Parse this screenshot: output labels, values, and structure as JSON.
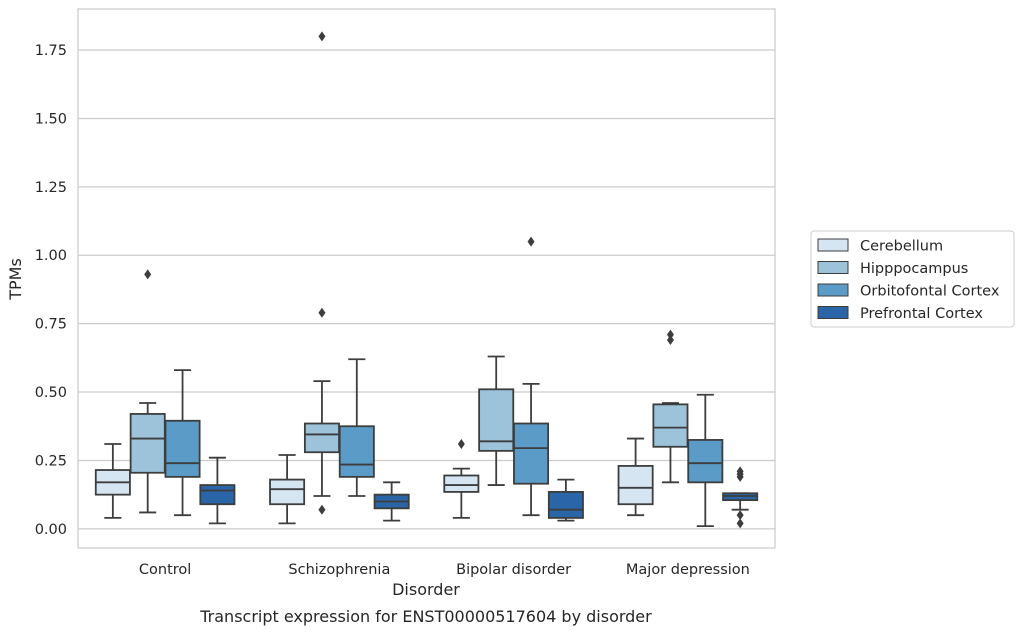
{
  "chart_data": {
    "type": "boxplot",
    "caption": "Transcript expression for ENST00000517604 by disorder",
    "xlabel": "Disorder",
    "ylabel": "TPMs",
    "ylim": [
      -0.07,
      1.9
    ],
    "yticks": [
      "0.00",
      "0.25",
      "0.50",
      "0.75",
      "1.00",
      "1.25",
      "1.50",
      "1.75"
    ],
    "categories": [
      "Control",
      "Schizophrenia",
      "Bipolar disorder",
      "Major depression"
    ],
    "grid": "horizontal",
    "legend_position": "outside-right",
    "series": [
      {
        "name": "Cerebellum",
        "color": "#d6e5f2",
        "boxes": [
          {
            "min": 0.04,
            "q1": 0.125,
            "median": 0.17,
            "q3": 0.215,
            "max": 0.31,
            "outliers": []
          },
          {
            "min": 0.02,
            "q1": 0.09,
            "median": 0.145,
            "q3": 0.18,
            "max": 0.27,
            "outliers": []
          },
          {
            "min": 0.04,
            "q1": 0.135,
            "median": 0.16,
            "q3": 0.195,
            "max": 0.22,
            "outliers": [
              0.31
            ]
          },
          {
            "min": 0.05,
            "q1": 0.09,
            "median": 0.15,
            "q3": 0.23,
            "max": 0.33,
            "outliers": []
          }
        ]
      },
      {
        "name": "Hipppocampus",
        "color": "#9cc3da",
        "boxes": [
          {
            "min": 0.06,
            "q1": 0.205,
            "median": 0.33,
            "q3": 0.42,
            "max": 0.46,
            "outliers": [
              0.93
            ]
          },
          {
            "min": 0.12,
            "q1": 0.28,
            "median": 0.345,
            "q3": 0.385,
            "max": 0.54,
            "outliers": [
              0.79,
              0.07,
              1.8
            ]
          },
          {
            "min": 0.16,
            "q1": 0.285,
            "median": 0.32,
            "q3": 0.51,
            "max": 0.63,
            "outliers": []
          },
          {
            "min": 0.17,
            "q1": 0.3,
            "median": 0.37,
            "q3": 0.455,
            "max": 0.46,
            "outliers": [
              0.71,
              0.69
            ]
          }
        ]
      },
      {
        "name": "Orbitofontal Cortex",
        "color": "#5a9bc8",
        "boxes": [
          {
            "min": 0.05,
            "q1": 0.19,
            "median": 0.24,
            "q3": 0.395,
            "max": 0.58,
            "outliers": []
          },
          {
            "min": 0.12,
            "q1": 0.19,
            "median": 0.235,
            "q3": 0.375,
            "max": 0.62,
            "outliers": []
          },
          {
            "min": 0.05,
            "q1": 0.165,
            "median": 0.295,
            "q3": 0.385,
            "max": 0.53,
            "outliers": [
              1.05
            ]
          },
          {
            "min": 0.01,
            "q1": 0.17,
            "median": 0.24,
            "q3": 0.325,
            "max": 0.49,
            "outliers": []
          }
        ]
      },
      {
        "name": "Prefrontal Cortex",
        "color": "#2a65a7",
        "boxes": [
          {
            "min": 0.02,
            "q1": 0.09,
            "median": 0.14,
            "q3": 0.16,
            "max": 0.26,
            "outliers": []
          },
          {
            "min": 0.03,
            "q1": 0.075,
            "median": 0.1,
            "q3": 0.125,
            "max": 0.17,
            "outliers": []
          },
          {
            "min": 0.03,
            "q1": 0.04,
            "median": 0.07,
            "q3": 0.135,
            "max": 0.18,
            "outliers": []
          },
          {
            "min": 0.07,
            "q1": 0.105,
            "median": 0.12,
            "q3": 0.13,
            "max": 0.13,
            "outliers": [
              0.21,
              0.2,
              0.19,
              0.05,
              0.02
            ]
          }
        ]
      }
    ]
  }
}
